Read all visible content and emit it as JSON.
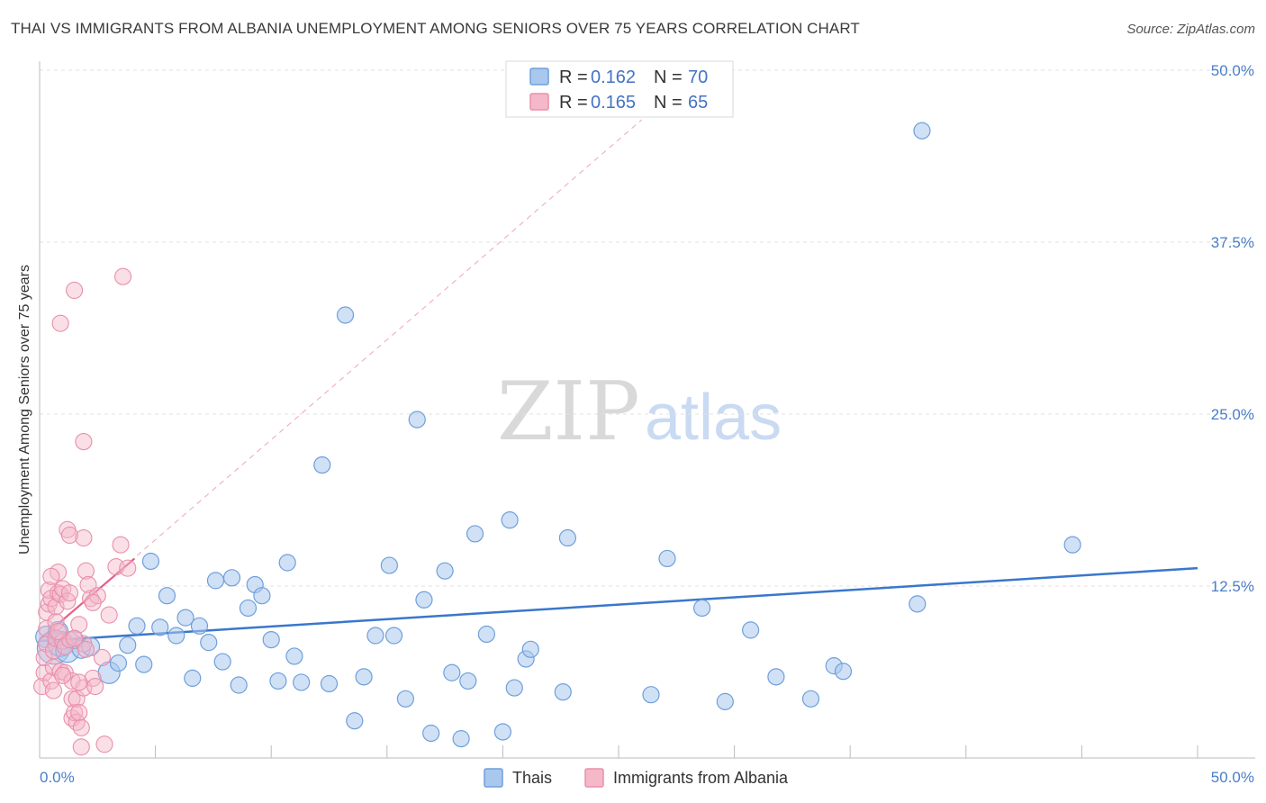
{
  "title": "THAI VS IMMIGRANTS FROM ALBANIA UNEMPLOYMENT AMONG SENIORS OVER 75 YEARS CORRELATION CHART",
  "source": "Source: ZipAtlas.com",
  "watermark": {
    "zip": "ZIP",
    "atlas": "atlas"
  },
  "legend": {
    "rows": [
      {
        "r_label": "R =",
        "r_value": "0.162",
        "n_label": "N =",
        "n_value": "70"
      },
      {
        "r_label": "R =",
        "r_value": "0.165",
        "n_label": "N =",
        "n_value": "65"
      }
    ]
  },
  "bottom_legend": {
    "series1": "Thais",
    "series2": "Immigrants from Albania"
  },
  "colors": {
    "blue_fill": "#a9c8ee",
    "blue_stroke": "#6f9fdb",
    "blue_line": "#3a77cc",
    "pink_fill": "#f5b8c9",
    "pink_stroke": "#e98fab",
    "pink_line": "#e0608a",
    "grid": "#e2e2e2",
    "tick_text": "#4a7ec8"
  },
  "chart_data": {
    "type": "scatter",
    "title": "THAI VS IMMIGRANTS FROM ALBANIA UNEMPLOYMENT AMONG SENIORS OVER 75 YEARS CORRELATION CHART",
    "xlabel": "",
    "ylabel": "Unemployment Among Seniors over 75 years",
    "xlim": [
      0,
      50
    ],
    "ylim": [
      0,
      50
    ],
    "x_tick_labels": [
      "0.0%",
      "50.0%"
    ],
    "y_ticks": [
      12.5,
      25.0,
      37.5,
      50.0
    ],
    "y_tick_labels": [
      "12.5%",
      "25.0%",
      "37.5%",
      "50.0%"
    ],
    "grid": true,
    "legend_position": "top-center",
    "series": [
      {
        "name": "Thais",
        "R": 0.162,
        "N": 70,
        "trend": {
          "x0": 0,
          "y0": 8.5,
          "x1": 50,
          "y1": 13.8
        },
        "points": [
          [
            0.3,
            8.8,
            12
          ],
          [
            0.6,
            8.0,
            18
          ],
          [
            0.9,
            8.3,
            14
          ],
          [
            1.2,
            7.8,
            13
          ],
          [
            1.5,
            8.6,
            10
          ],
          [
            0.8,
            9.2,
            11
          ],
          [
            1.8,
            7.9,
            10
          ],
          [
            2.2,
            8.1,
            10
          ],
          [
            3.0,
            6.2,
            12
          ],
          [
            3.4,
            6.9,
            9
          ],
          [
            3.8,
            8.2,
            9
          ],
          [
            4.2,
            9.6,
            9
          ],
          [
            4.5,
            6.8,
            9
          ],
          [
            4.8,
            14.3,
            9
          ],
          [
            5.2,
            9.5,
            9
          ],
          [
            5.5,
            11.8,
            9
          ],
          [
            5.9,
            8.9,
            9
          ],
          [
            6.3,
            10.2,
            9
          ],
          [
            6.6,
            5.8,
            9
          ],
          [
            6.9,
            9.6,
            9
          ],
          [
            7.3,
            8.4,
            9
          ],
          [
            7.6,
            12.9,
            9
          ],
          [
            7.9,
            7.0,
            9
          ],
          [
            8.3,
            13.1,
            9
          ],
          [
            8.6,
            5.3,
            9
          ],
          [
            9.0,
            10.9,
            9
          ],
          [
            9.3,
            12.6,
            9
          ],
          [
            9.6,
            11.8,
            9
          ],
          [
            10.0,
            8.6,
            9
          ],
          [
            10.3,
            5.6,
            9
          ],
          [
            10.7,
            14.2,
            9
          ],
          [
            11.0,
            7.4,
            9
          ],
          [
            11.3,
            5.5,
            9
          ],
          [
            12.2,
            21.3,
            9
          ],
          [
            12.5,
            5.4,
            9
          ],
          [
            13.2,
            32.2,
            9
          ],
          [
            13.6,
            2.7,
            9
          ],
          [
            14.0,
            5.9,
            9
          ],
          [
            14.5,
            8.9,
            9
          ],
          [
            15.1,
            14.0,
            9
          ],
          [
            15.3,
            8.9,
            9
          ],
          [
            15.8,
            4.3,
            9
          ],
          [
            16.3,
            24.6,
            9
          ],
          [
            16.6,
            11.5,
            9
          ],
          [
            16.9,
            1.8,
            9
          ],
          [
            17.5,
            13.6,
            9
          ],
          [
            17.8,
            6.2,
            9
          ],
          [
            18.2,
            1.4,
            9
          ],
          [
            18.5,
            5.6,
            9
          ],
          [
            18.8,
            16.3,
            9
          ],
          [
            19.3,
            9.0,
            9
          ],
          [
            20.0,
            1.9,
            9
          ],
          [
            20.3,
            17.3,
            9
          ],
          [
            20.5,
            5.1,
            9
          ],
          [
            21.0,
            7.2,
            9
          ],
          [
            21.2,
            7.9,
            9
          ],
          [
            22.6,
            4.8,
            9
          ],
          [
            22.8,
            16.0,
            9
          ],
          [
            26.4,
            4.6,
            9
          ],
          [
            27.1,
            14.5,
            9
          ],
          [
            28.6,
            10.9,
            9
          ],
          [
            29.6,
            4.1,
            9
          ],
          [
            30.7,
            9.3,
            9
          ],
          [
            31.8,
            5.9,
            9
          ],
          [
            33.3,
            4.3,
            9
          ],
          [
            34.3,
            6.7,
            9
          ],
          [
            34.7,
            6.3,
            9
          ],
          [
            37.9,
            11.2,
            9
          ],
          [
            38.1,
            45.6,
            9
          ],
          [
            44.6,
            15.5,
            9
          ]
        ]
      },
      {
        "name": "Immigrants from Albania",
        "R": 0.165,
        "N": 65,
        "trend": {
          "x0": 0,
          "y0": 8.6,
          "x1": 4.1,
          "y1": 14.5
        },
        "trend_extended": {
          "x0": 0,
          "y0": 8.6,
          "x1": 26,
          "y1": 46.4
        },
        "points": [
          [
            0.1,
            5.2,
            9
          ],
          [
            0.2,
            6.2,
            9
          ],
          [
            0.2,
            7.3,
            9
          ],
          [
            0.3,
            8.3,
            9
          ],
          [
            0.3,
            9.4,
            9
          ],
          [
            0.3,
            10.6,
            9
          ],
          [
            0.4,
            11.2,
            9
          ],
          [
            0.4,
            12.2,
            9
          ],
          [
            0.5,
            11.6,
            9
          ],
          [
            0.5,
            5.6,
            9
          ],
          [
            0.6,
            6.6,
            9
          ],
          [
            0.6,
            7.8,
            9
          ],
          [
            0.7,
            8.7,
            9
          ],
          [
            0.7,
            9.9,
            9
          ],
          [
            0.7,
            11.0,
            9
          ],
          [
            0.8,
            12.0,
            9
          ],
          [
            0.8,
            13.5,
            9
          ],
          [
            0.9,
            11.9,
            9
          ],
          [
            0.9,
            6.3,
            9
          ],
          [
            0.9,
            31.6,
            9
          ],
          [
            1.0,
            8.5,
            9
          ],
          [
            1.0,
            12.3,
            9
          ],
          [
            1.1,
            6.2,
            9
          ],
          [
            1.1,
            8.1,
            9
          ],
          [
            1.2,
            11.4,
            9
          ],
          [
            1.2,
            16.6,
            9
          ],
          [
            1.3,
            16.2,
            9
          ],
          [
            1.3,
            8.6,
            9
          ],
          [
            1.4,
            4.3,
            9
          ],
          [
            1.4,
            2.9,
            9
          ],
          [
            1.5,
            34.0,
            9
          ],
          [
            1.5,
            3.3,
            9
          ],
          [
            1.6,
            2.6,
            9
          ],
          [
            1.6,
            4.3,
            9
          ],
          [
            1.7,
            3.3,
            9
          ],
          [
            1.7,
            9.7,
            9
          ],
          [
            1.8,
            2.2,
            9
          ],
          [
            1.8,
            0.8,
            9
          ],
          [
            1.9,
            23.0,
            9
          ],
          [
            1.9,
            16.0,
            9
          ],
          [
            1.9,
            8.3,
            9
          ],
          [
            1.4,
            5.6,
            9
          ],
          [
            1.9,
            5.1,
            9
          ],
          [
            2.0,
            13.6,
            9
          ],
          [
            2.1,
            12.6,
            9
          ],
          [
            2.2,
            11.6,
            9
          ],
          [
            2.3,
            5.8,
            9
          ],
          [
            2.4,
            5.2,
            9
          ],
          [
            2.5,
            11.8,
            9
          ],
          [
            2.8,
            1.0,
            9
          ],
          [
            3.0,
            10.4,
            9
          ],
          [
            3.3,
            13.9,
            9
          ],
          [
            3.5,
            15.5,
            9
          ],
          [
            3.6,
            35.0,
            9
          ],
          [
            3.8,
            13.8,
            9
          ],
          [
            1.5,
            8.7,
            9
          ],
          [
            1.0,
            6.0,
            9
          ],
          [
            2.0,
            7.9,
            9
          ],
          [
            2.3,
            11.3,
            9
          ],
          [
            0.6,
            4.9,
            9
          ],
          [
            1.7,
            5.5,
            9
          ],
          [
            0.8,
            9.2,
            9
          ],
          [
            1.3,
            12.0,
            9
          ],
          [
            0.5,
            13.2,
            9
          ],
          [
            2.7,
            7.3,
            9
          ]
        ]
      }
    ]
  }
}
